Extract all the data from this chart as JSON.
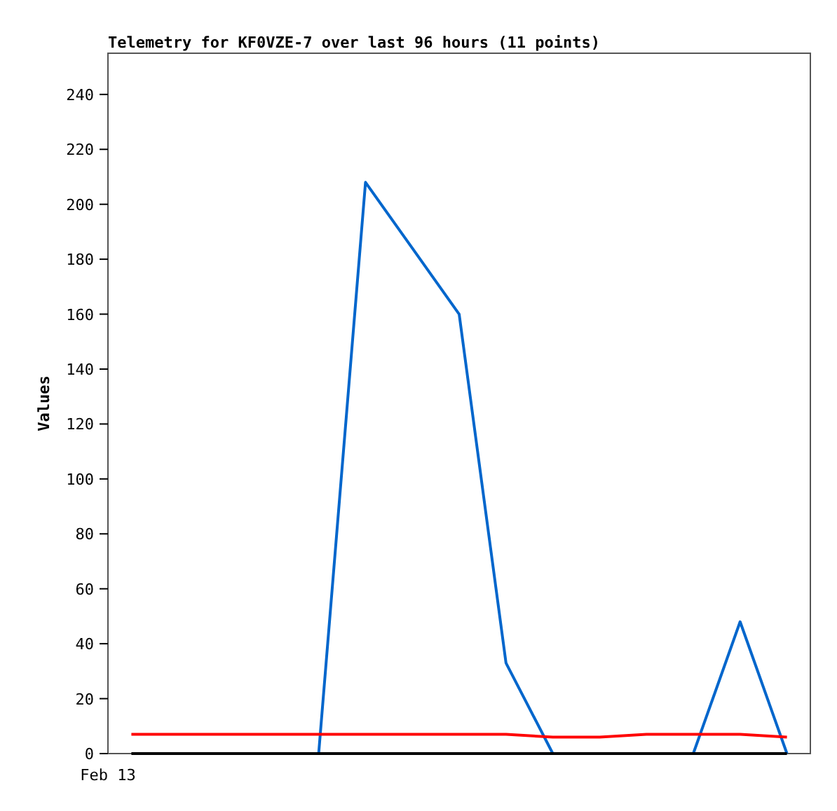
{
  "chart_data": {
    "type": "line",
    "title": "Telemetry for KF0VZE-7 over last 96 hours (11 points)",
    "ylabel": "Values",
    "annotations": [
      "Feb 13"
    ],
    "categories": [
      null,
      null,
      null,
      null,
      null,
      null,
      null,
      null,
      null,
      null,
      null,
      null,
      null,
      null,
      null
    ],
    "series": [
      {
        "color": "#0066cc",
        "values": [
          null,
          null,
          null,
          null,
          0,
          208,
          184,
          160,
          33,
          0,
          null,
          null,
          0,
          48,
          0
        ]
      },
      {
        "color": "#ff0000",
        "values": [
          7,
          7,
          7,
          7,
          7,
          7,
          7,
          7,
          7,
          6,
          6,
          7,
          7,
          7,
          6
        ]
      },
      {
        "color": "#000000",
        "values": [
          0,
          0,
          0,
          0,
          0,
          0,
          0,
          0,
          0,
          0,
          0,
          0,
          0,
          0,
          0
        ]
      }
    ],
    "ylim": [
      0,
      255
    ],
    "yticks": [
      0,
      20,
      40,
      60,
      80,
      100,
      120,
      140,
      160,
      180,
      200,
      220,
      240
    ],
    "grid": false,
    "marker": "none",
    "line_style": "solid"
  }
}
